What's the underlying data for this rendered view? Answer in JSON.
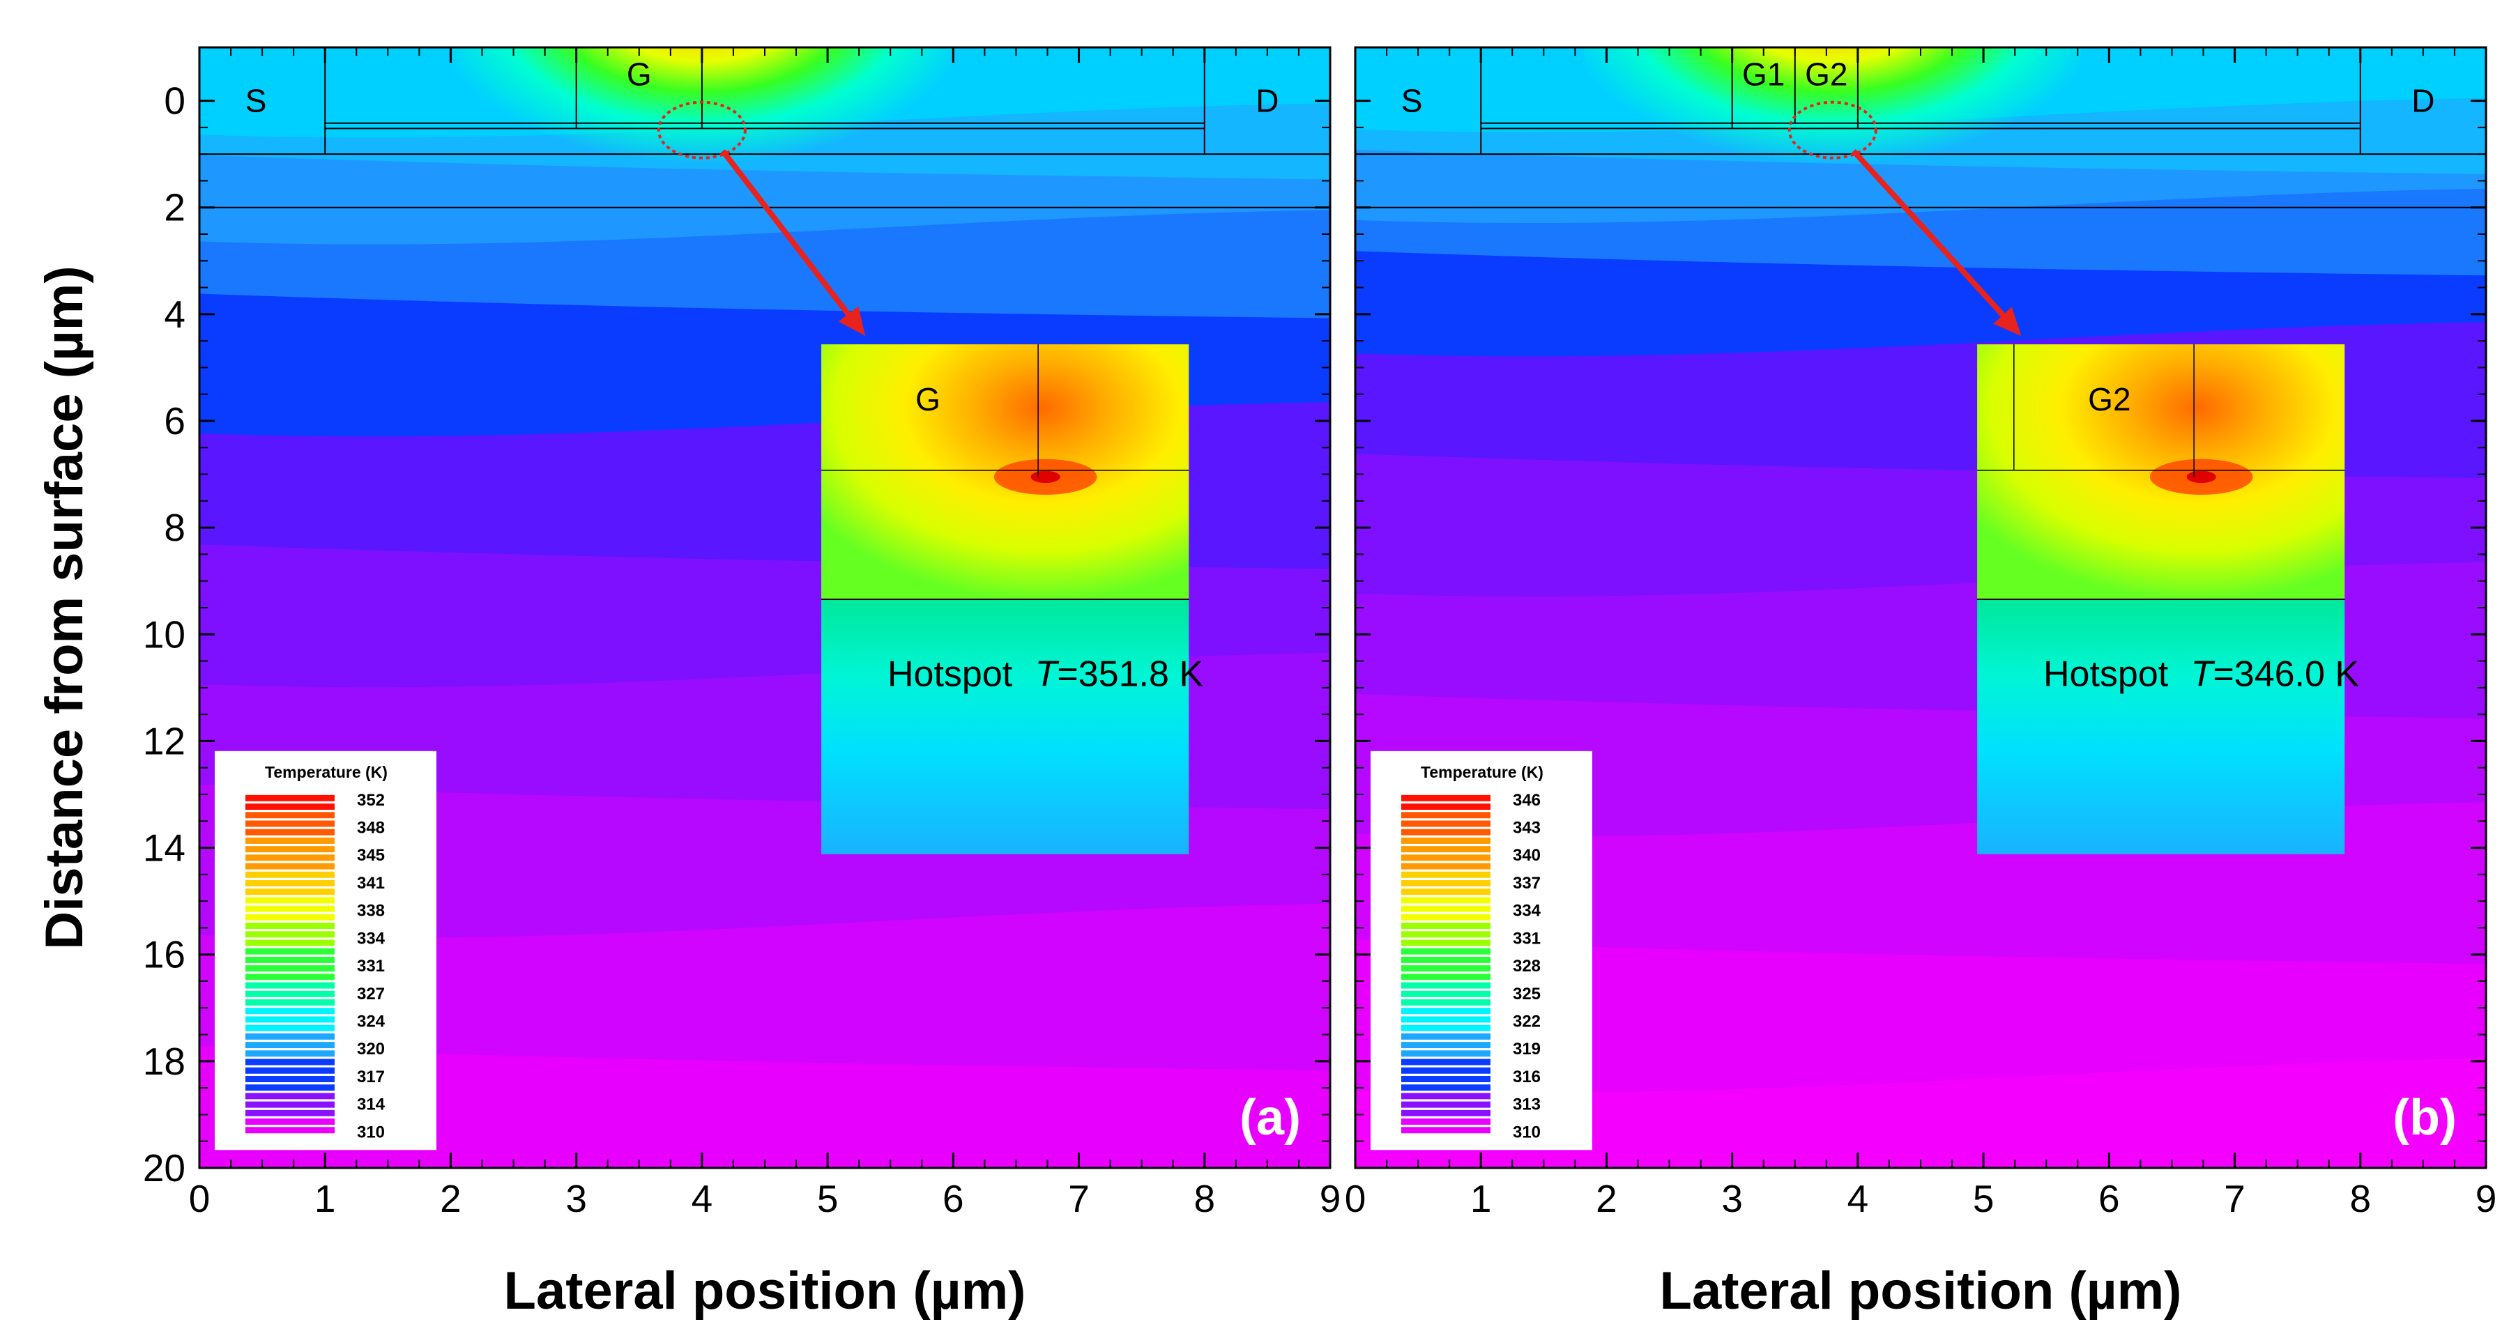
{
  "chart_data": [
    {
      "type": "heatmap",
      "panel_label": "(a)",
      "xlabel": "Lateral position (µm)",
      "ylabel": "Distance from surface (µm)",
      "xlim": [
        0,
        9
      ],
      "ylim": [
        20,
        -1
      ],
      "x_ticks": [
        0,
        1,
        2,
        3,
        4,
        5,
        6,
        7,
        8,
        9
      ],
      "y_ticks": [
        0,
        2,
        4,
        6,
        8,
        10,
        12,
        14,
        16,
        18,
        20
      ],
      "regions": [
        {
          "label": "S",
          "x": 0.45,
          "y": 0
        },
        {
          "label": "G",
          "x": 3.5,
          "y": -0.5
        },
        {
          "label": "D",
          "x": 8.5,
          "y": 0
        }
      ],
      "hotspot": {
        "x": 4.0,
        "y": 0.55
      },
      "inset": {
        "label": "G",
        "text_prefix": "Hotspot ",
        "text_var": "T",
        "text_value": "=351.8 K"
      },
      "legend": {
        "title": "Temperature (K)",
        "ticks": [
          "352",
          "348",
          "345",
          "341",
          "338",
          "334",
          "331",
          "327",
          "324",
          "320",
          "317",
          "314",
          "310"
        ]
      },
      "band_depths": [
        0.4,
        1.2,
        2.4,
        3.8,
        6.0,
        8.5,
        10.7,
        13.0,
        15.4,
        17.9
      ],
      "colors": {
        "accent": "#e8221c"
      }
    },
    {
      "type": "heatmap",
      "panel_label": "(b)",
      "xlabel": "Lateral position (µm)",
      "ylabel": "",
      "xlim": [
        0,
        9
      ],
      "ylim": [
        20,
        -1
      ],
      "x_ticks": [
        0,
        1,
        2,
        3,
        4,
        5,
        6,
        7,
        8,
        9
      ],
      "regions": [
        {
          "label": "S",
          "x": 0.45,
          "y": 0
        },
        {
          "label": "G1",
          "x": 3.25,
          "y": -0.5
        },
        {
          "label": "G2",
          "x": 3.75,
          "y": -0.5
        },
        {
          "label": "D",
          "x": 8.5,
          "y": 0
        }
      ],
      "hotspot": {
        "x": 3.8,
        "y": 0.55
      },
      "inset": {
        "label": "G2",
        "text_prefix": "Hotspot ",
        "text_var": "T",
        "text_value": "=346.0 K"
      },
      "legend": {
        "title": "Temperature (K)",
        "ticks": [
          "346",
          "343",
          "340",
          "337",
          "334",
          "331",
          "328",
          "325",
          "322",
          "319",
          "316",
          "313",
          "310"
        ]
      },
      "band_depths": [
        0.3,
        1.1,
        2.0,
        3.0,
        4.5,
        6.8,
        9.0,
        11.3,
        13.5,
        15.9,
        18.3
      ],
      "colors": {
        "accent": "#e8221c"
      }
    }
  ]
}
